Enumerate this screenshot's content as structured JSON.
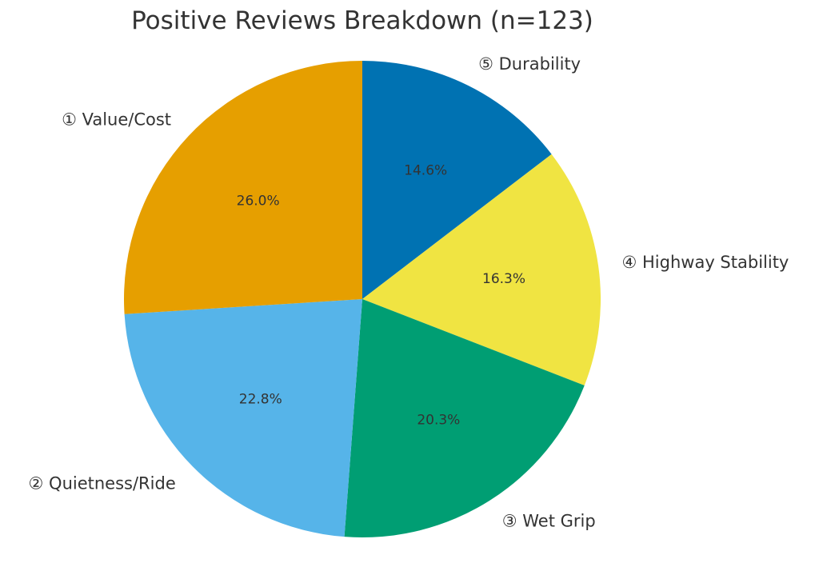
{
  "chart_data": {
    "type": "pie",
    "title": "Positive Reviews Breakdown (n=123)",
    "start_angle_deg": 90,
    "direction": "clockwise",
    "slices": [
      {
        "label": "⑤ Durability",
        "value": 14.6,
        "pct_label": "14.6%",
        "color": "#0072B2"
      },
      {
        "label": "④ Highway Stability",
        "value": 16.3,
        "pct_label": "16.3%",
        "color": "#F0E442"
      },
      {
        "label": "③ Wet Grip",
        "value": 20.3,
        "pct_label": "20.3%",
        "color": "#009E73"
      },
      {
        "label": "② Quietness/Ride",
        "value": 22.8,
        "pct_label": "22.8%",
        "color": "#56B4E9"
      },
      {
        "label": "① Value/Cost",
        "value": 26.0,
        "pct_label": "26.0%",
        "color": "#E69F00"
      }
    ]
  }
}
